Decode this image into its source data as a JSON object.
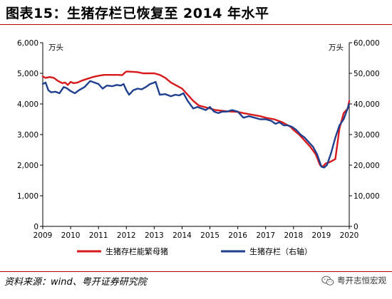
{
  "title": "图表15：生猪存栏已恢复至 2014 年水平",
  "source": "资料来源：wind、粤开证券研究院",
  "watermark": "粤开志恒宏观",
  "colors": {
    "red": "#d7191c",
    "blue": "#1f3f8f",
    "rule": "#b00000"
  },
  "chart_data": {
    "type": "line",
    "left_unit": "万头",
    "right_unit": "万头",
    "x_range": [
      2009,
      2020
    ],
    "x_ticks": [
      "2009",
      "2010",
      "2011",
      "2012",
      "2013",
      "2014",
      "2015",
      "2016",
      "2017",
      "2018",
      "2019",
      "2020"
    ],
    "left_ylim": [
      0,
      6000
    ],
    "left_ticks": [
      "0",
      "1,000",
      "2,000",
      "3,000",
      "4,000",
      "5,000",
      "6,000"
    ],
    "right_ylim": [
      0,
      60000
    ],
    "right_ticks": [
      "0",
      "10,000",
      "20,000",
      "30,000",
      "40,000",
      "50,000",
      "60,000"
    ],
    "grid": false,
    "legend_position": "bottom",
    "series": [
      {
        "name": "生猪存栏能繁母猪",
        "axis": "left",
        "color": "#d7191c",
        "x": [
          2009.0,
          2009.1,
          2009.25,
          2009.4,
          2009.55,
          2009.7,
          2009.8,
          2009.9,
          2010.0,
          2010.1,
          2010.25,
          2010.4,
          2010.6,
          2010.8,
          2011.0,
          2011.2,
          2011.5,
          2011.7,
          2011.85,
          2011.92,
          2012.0,
          2012.2,
          2012.4,
          2012.6,
          2012.8,
          2013.0,
          2013.2,
          2013.4,
          2013.6,
          2013.8,
          2014.0,
          2014.2,
          2014.4,
          2014.6,
          2014.8,
          2015.0,
          2015.2,
          2015.4,
          2015.6,
          2015.8,
          2016.0,
          2016.2,
          2016.5,
          2016.8,
          2017.0,
          2017.3,
          2017.6,
          2017.9,
          2018.0,
          2018.2,
          2018.4,
          2018.6,
          2018.8,
          2018.95,
          2019.05,
          2019.15,
          2019.3,
          2019.5,
          2019.65,
          2019.8,
          2019.95,
          2020.0
        ],
        "y": [
          4900,
          4850,
          4880,
          4850,
          4750,
          4680,
          4700,
          4620,
          4720,
          4680,
          4700,
          4760,
          4820,
          4880,
          4920,
          4950,
          4950,
          4950,
          4940,
          5000,
          5060,
          5050,
          5040,
          5000,
          5000,
          5000,
          4950,
          4850,
          4700,
          4600,
          4500,
          4300,
          4100,
          3950,
          3900,
          3850,
          3800,
          3780,
          3760,
          3750,
          3740,
          3700,
          3650,
          3600,
          3550,
          3500,
          3400,
          3250,
          3150,
          3000,
          2800,
          2600,
          2350,
          2000,
          1950,
          2050,
          2100,
          2200,
          3200,
          3700,
          3850,
          4100
        ]
      },
      {
        "name": "生猪存栏（右轴）",
        "axis": "right",
        "color": "#1f3f8f",
        "x": [
          2009.0,
          2009.1,
          2009.2,
          2009.3,
          2009.45,
          2009.6,
          2009.75,
          2009.85,
          2010.0,
          2010.15,
          2010.3,
          2010.5,
          2010.7,
          2010.85,
          2011.0,
          2011.15,
          2011.3,
          2011.5,
          2011.65,
          2011.8,
          2011.9,
          2012.0,
          2012.1,
          2012.25,
          2012.4,
          2012.55,
          2012.7,
          2012.85,
          2012.95,
          2013.05,
          2013.2,
          2013.4,
          2013.6,
          2013.75,
          2013.9,
          2014.05,
          2014.2,
          2014.4,
          2014.55,
          2014.7,
          2014.85,
          2015.0,
          2015.15,
          2015.3,
          2015.45,
          2015.6,
          2015.8,
          2016.0,
          2016.2,
          2016.4,
          2016.6,
          2016.8,
          2017.0,
          2017.2,
          2017.35,
          2017.5,
          2017.65,
          2017.8,
          2017.95,
          2018.1,
          2018.25,
          2018.4,
          2018.55,
          2018.7,
          2018.85,
          2019.0,
          2019.1,
          2019.2,
          2019.35,
          2019.5,
          2019.65,
          2019.8,
          2019.92,
          2020.0
        ],
        "y": [
          46500,
          47000,
          44500,
          43800,
          44000,
          43500,
          45500,
          45200,
          44200,
          43500,
          44500,
          45500,
          47500,
          47000,
          46500,
          45000,
          46000,
          45800,
          46200,
          46000,
          46500,
          44500,
          43000,
          44500,
          45000,
          44800,
          45500,
          46500,
          46800,
          47200,
          43000,
          43200,
          42500,
          43000,
          42800,
          43500,
          41000,
          38500,
          39000,
          38500,
          38000,
          39000,
          37500,
          37000,
          37500,
          37500,
          38000,
          37500,
          35500,
          36000,
          35500,
          35000,
          35000,
          34500,
          33500,
          34000,
          33000,
          33000,
          32500,
          31500,
          30000,
          29000,
          27500,
          26000,
          23500,
          19500,
          19200,
          20000,
          24000,
          29000,
          33000,
          35000,
          38000,
          40000
        ]
      }
    ]
  }
}
